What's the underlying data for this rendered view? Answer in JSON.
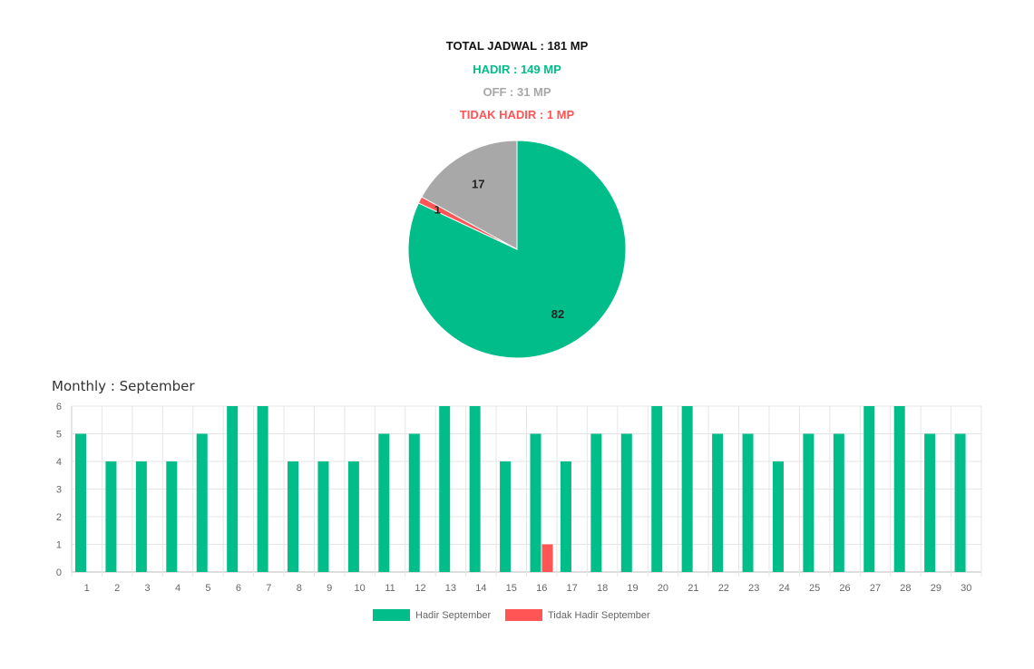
{
  "summary": {
    "total": "TOTAL JADWAL : 181 MP",
    "hadir": "HADIR : 149 MP",
    "off": "OFF : 31 MP",
    "tidak_hadir": "TIDAK HADIR : 1 MP"
  },
  "colors": {
    "hadir": "#00BD8A",
    "off": "#A8A8A8",
    "tidak_hadir": "#FF5555",
    "total": "#111111"
  },
  "monthly_title": "Monthly : September",
  "chart_data": [
    {
      "type": "pie",
      "slices": [
        {
          "value": 82,
          "color": "#00BD8A",
          "label": "82"
        },
        {
          "value": 1,
          "color": "#FF5555",
          "label": "1"
        },
        {
          "value": 17,
          "color": "#A8A8A8",
          "label": "17"
        }
      ]
    },
    {
      "type": "bar",
      "categories": [
        "1",
        "2",
        "3",
        "4",
        "5",
        "6",
        "7",
        "8",
        "9",
        "10",
        "11",
        "12",
        "13",
        "14",
        "15",
        "16",
        "17",
        "18",
        "19",
        "20",
        "21",
        "22",
        "23",
        "24",
        "25",
        "26",
        "27",
        "28",
        "29",
        "30"
      ],
      "series": [
        {
          "name": "Hadir September",
          "color": "#00BD8A",
          "values": [
            5,
            4,
            4,
            4,
            5,
            6,
            6,
            4,
            4,
            4,
            5,
            5,
            6,
            6,
            4,
            5,
            4,
            5,
            5,
            6,
            6,
            5,
            5,
            4,
            5,
            5,
            6,
            6,
            5,
            5
          ]
        },
        {
          "name": "Tidak Hadir September",
          "color": "#FF5555",
          "values": [
            0,
            0,
            0,
            0,
            0,
            0,
            0,
            0,
            0,
            0,
            0,
            0,
            0,
            0,
            0,
            1,
            0,
            0,
            0,
            0,
            0,
            0,
            0,
            0,
            0,
            0,
            0,
            0,
            0,
            0
          ]
        }
      ],
      "ylim": [
        0,
        6
      ],
      "yticks": [
        0,
        1,
        2,
        3,
        4,
        5,
        6
      ],
      "grid": true,
      "legend": "bottom-center"
    }
  ]
}
